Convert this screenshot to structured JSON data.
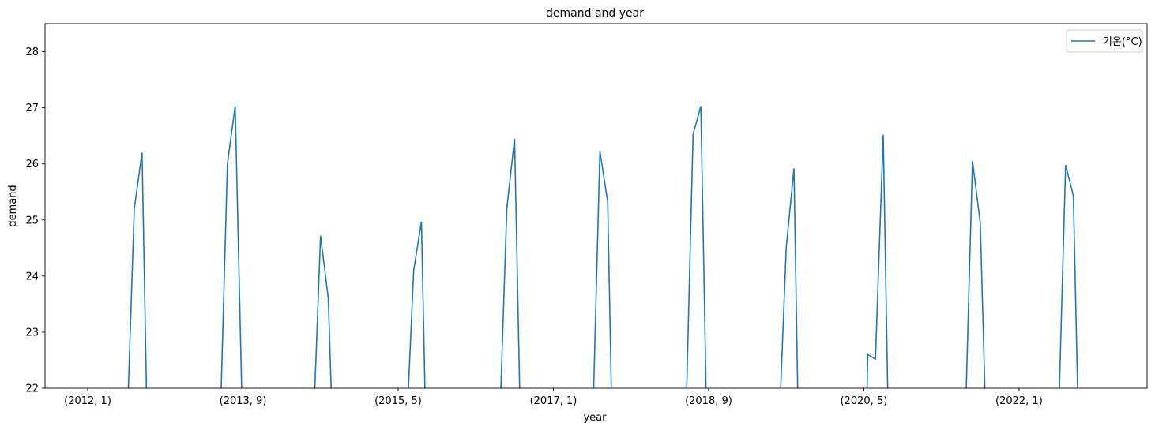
{
  "chart_data": {
    "type": "line",
    "title": "demand and year",
    "xlabel": "year",
    "ylabel": "demand",
    "ylim": [
      22,
      28.5
    ],
    "yticks": [
      22,
      23,
      24,
      25,
      26,
      27,
      28
    ],
    "xlim": [
      -5.5,
      136.5
    ],
    "xticks": [
      {
        "pos": 0,
        "label": "(2012, 1)"
      },
      {
        "pos": 20,
        "label": "(2013, 9)"
      },
      {
        "pos": 40,
        "label": "(2015, 5)"
      },
      {
        "pos": 60,
        "label": "(2017, 1)"
      },
      {
        "pos": 80,
        "label": "(2018, 9)"
      },
      {
        "pos": 100,
        "label": "(2020, 5)"
      },
      {
        "pos": 120,
        "label": "(2022, 1)"
      }
    ],
    "legend": {
      "position": "top-right"
    },
    "grid": false,
    "series": [
      {
        "name": "기온(°C)",
        "color": "#1f77b4",
        "points": [
          [
            5,
            21
          ],
          [
            6,
            25.2
          ],
          [
            7,
            26.2
          ],
          [
            7.7,
            21
          ],
          [
            17,
            21
          ],
          [
            18,
            26.0
          ],
          [
            19,
            27.03
          ],
          [
            20,
            21
          ],
          [
            29,
            21
          ],
          [
            30,
            24.72
          ],
          [
            31,
            23.6
          ],
          [
            31.6,
            21
          ],
          [
            41,
            21
          ],
          [
            42,
            24.1
          ],
          [
            43,
            24.97
          ],
          [
            43.6,
            21
          ],
          [
            53,
            21
          ],
          [
            54,
            25.2
          ],
          [
            55,
            26.45
          ],
          [
            55.8,
            21
          ],
          [
            65,
            21
          ],
          [
            66,
            26.22
          ],
          [
            67,
            25.32
          ],
          [
            67.6,
            21
          ],
          [
            77,
            21
          ],
          [
            78,
            26.53
          ],
          [
            79,
            27.03
          ],
          [
            79.8,
            21
          ],
          [
            89,
            21
          ],
          [
            90,
            24.5
          ],
          [
            91,
            25.92
          ],
          [
            91.6,
            21
          ],
          [
            100.3,
            21
          ],
          [
            100.5,
            22.6
          ],
          [
            101.5,
            22.52
          ],
          [
            102.5,
            26.52
          ],
          [
            103.2,
            21
          ],
          [
            113,
            21
          ],
          [
            114,
            26.05
          ],
          [
            115,
            24.95
          ],
          [
            115.8,
            21
          ],
          [
            125,
            21
          ],
          [
            126,
            25.98
          ],
          [
            127,
            25.43
          ],
          [
            127.7,
            21
          ]
        ]
      }
    ]
  }
}
